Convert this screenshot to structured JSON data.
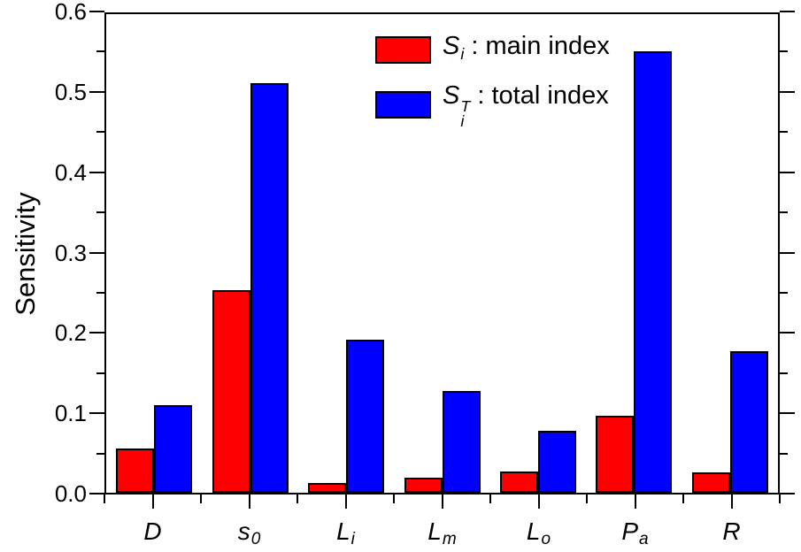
{
  "chart_data": {
    "type": "bar",
    "title": "",
    "xlabel": "",
    "ylabel": "Sensitivity",
    "ylim": [
      0,
      0.6
    ],
    "ytick_step": 0.1,
    "ytick_minor_step": 0.05,
    "ytick_labels": [
      "0.0",
      "0.1",
      "0.2",
      "0.3",
      "0.4",
      "0.5",
      "0.6"
    ],
    "grid": false,
    "legend_position": "top-center-inside",
    "background_color": "#ffffff",
    "bar_outline_color": "#000000",
    "frame": "full-box-outward-ticks",
    "categories": [
      {
        "main": "D",
        "sub": ""
      },
      {
        "main": "s",
        "sub": "0"
      },
      {
        "main": "L",
        "sub": "i"
      },
      {
        "main": "L",
        "sub": "m"
      },
      {
        "main": "L",
        "sub": "o"
      },
      {
        "main": "P",
        "sub": "a"
      },
      {
        "main": "R",
        "sub": ""
      }
    ],
    "series": [
      {
        "key": "main-index",
        "name": "Si : main index",
        "symbol": {
          "main": "S",
          "sub": "i",
          "sup": ""
        },
        "label_text": " : main index",
        "color": "#ff0000",
        "values": [
          0.055,
          0.254,
          0.012,
          0.019,
          0.027,
          0.096,
          0.026
        ]
      },
      {
        "key": "total-index",
        "name": "SiT : total index",
        "symbol": {
          "main": "S",
          "sub": "i",
          "sup": "T"
        },
        "label_text": " : total index",
        "color": "#0000ff",
        "values": [
          0.11,
          0.514,
          0.192,
          0.128,
          0.078,
          0.553,
          0.178
        ]
      }
    ]
  }
}
